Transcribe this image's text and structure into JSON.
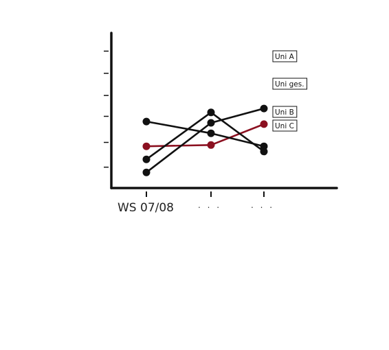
{
  "chart_data": {
    "type": "line",
    "title": "",
    "xlabel": "",
    "ylabel": "",
    "categories": [
      "WS 07/08",
      ". . .",
      ". . ."
    ],
    "ylim": [
      0,
      10
    ],
    "grid": false,
    "legend_placement": "right",
    "series": [
      {
        "name": "Uni A",
        "values": [
          1.2,
          5.0,
          6.1
        ],
        "color": "#111111"
      },
      {
        "name": "Uni ges.",
        "values": [
          3.2,
          3.3,
          4.9
        ],
        "color": "#8b1020"
      },
      {
        "name": "Uni B",
        "values": [
          5.1,
          4.2,
          3.2
        ],
        "color": "#111111"
      },
      {
        "name": "Uni C",
        "values": [
          2.2,
          5.8,
          2.8
        ],
        "color": "#111111"
      }
    ]
  },
  "colors": {
    "axis": "#111111",
    "default_line": "#111111",
    "accent": "#8b1020",
    "background": "#ffffff"
  }
}
